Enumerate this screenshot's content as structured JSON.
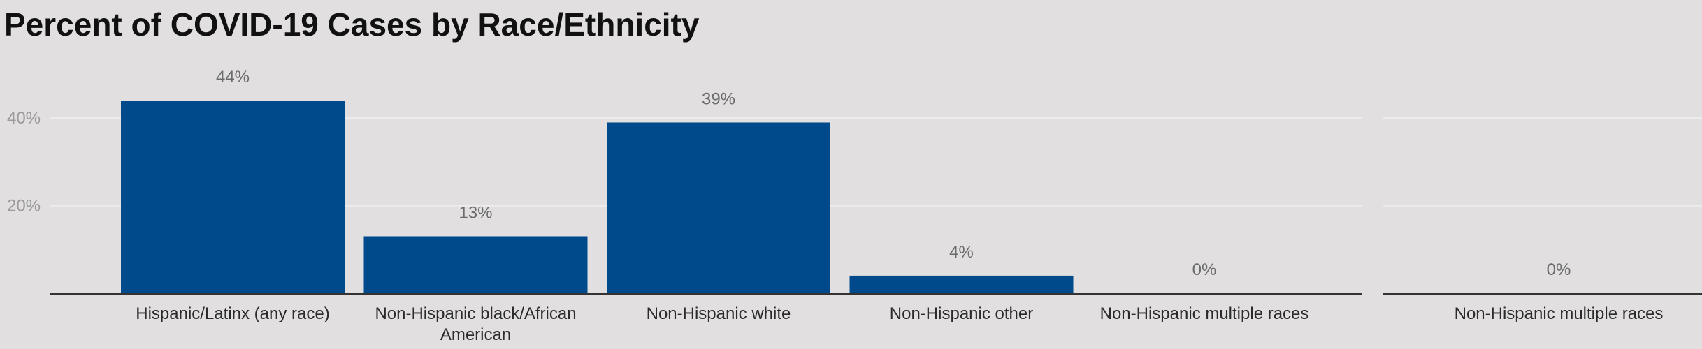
{
  "chart_data": [
    {
      "type": "bar",
      "title": "Percent of COVID-19 Cases by Race/Ethnicity",
      "xlabel": "",
      "ylabel": "",
      "ylim": [
        0,
        50
      ],
      "yticks": [
        "20%",
        "40%"
      ],
      "ytick_values": [
        20,
        40
      ],
      "categories": [
        [
          "Hispanic/Latinx (any race)"
        ],
        [
          "Non-Hispanic black/African",
          "American"
        ],
        [
          "Non-Hispanic white"
        ],
        [
          "Non-Hispanic other"
        ],
        [
          "Non-Hispanic multiple races"
        ]
      ],
      "values": [
        44,
        13,
        39,
        4,
        0
      ],
      "value_labels": [
        "44%",
        "13%",
        "39%",
        "4%",
        "0%"
      ],
      "bar_color": "#004a8c",
      "grid": true,
      "legend": "none"
    },
    {
      "type": "bar",
      "title": "",
      "xlabel": "",
      "ylabel": "",
      "ylim": [
        0,
        50
      ],
      "categories": [
        [
          "Non-Hispanic multiple races"
        ]
      ],
      "values": [
        0
      ],
      "value_labels": [
        "0%"
      ],
      "bar_color": "#004a8c",
      "grid": true,
      "legend": "none"
    }
  ],
  "colors": {
    "background": "#e1dfdf",
    "gridline": "#eeeeee",
    "axis": "#333333"
  }
}
